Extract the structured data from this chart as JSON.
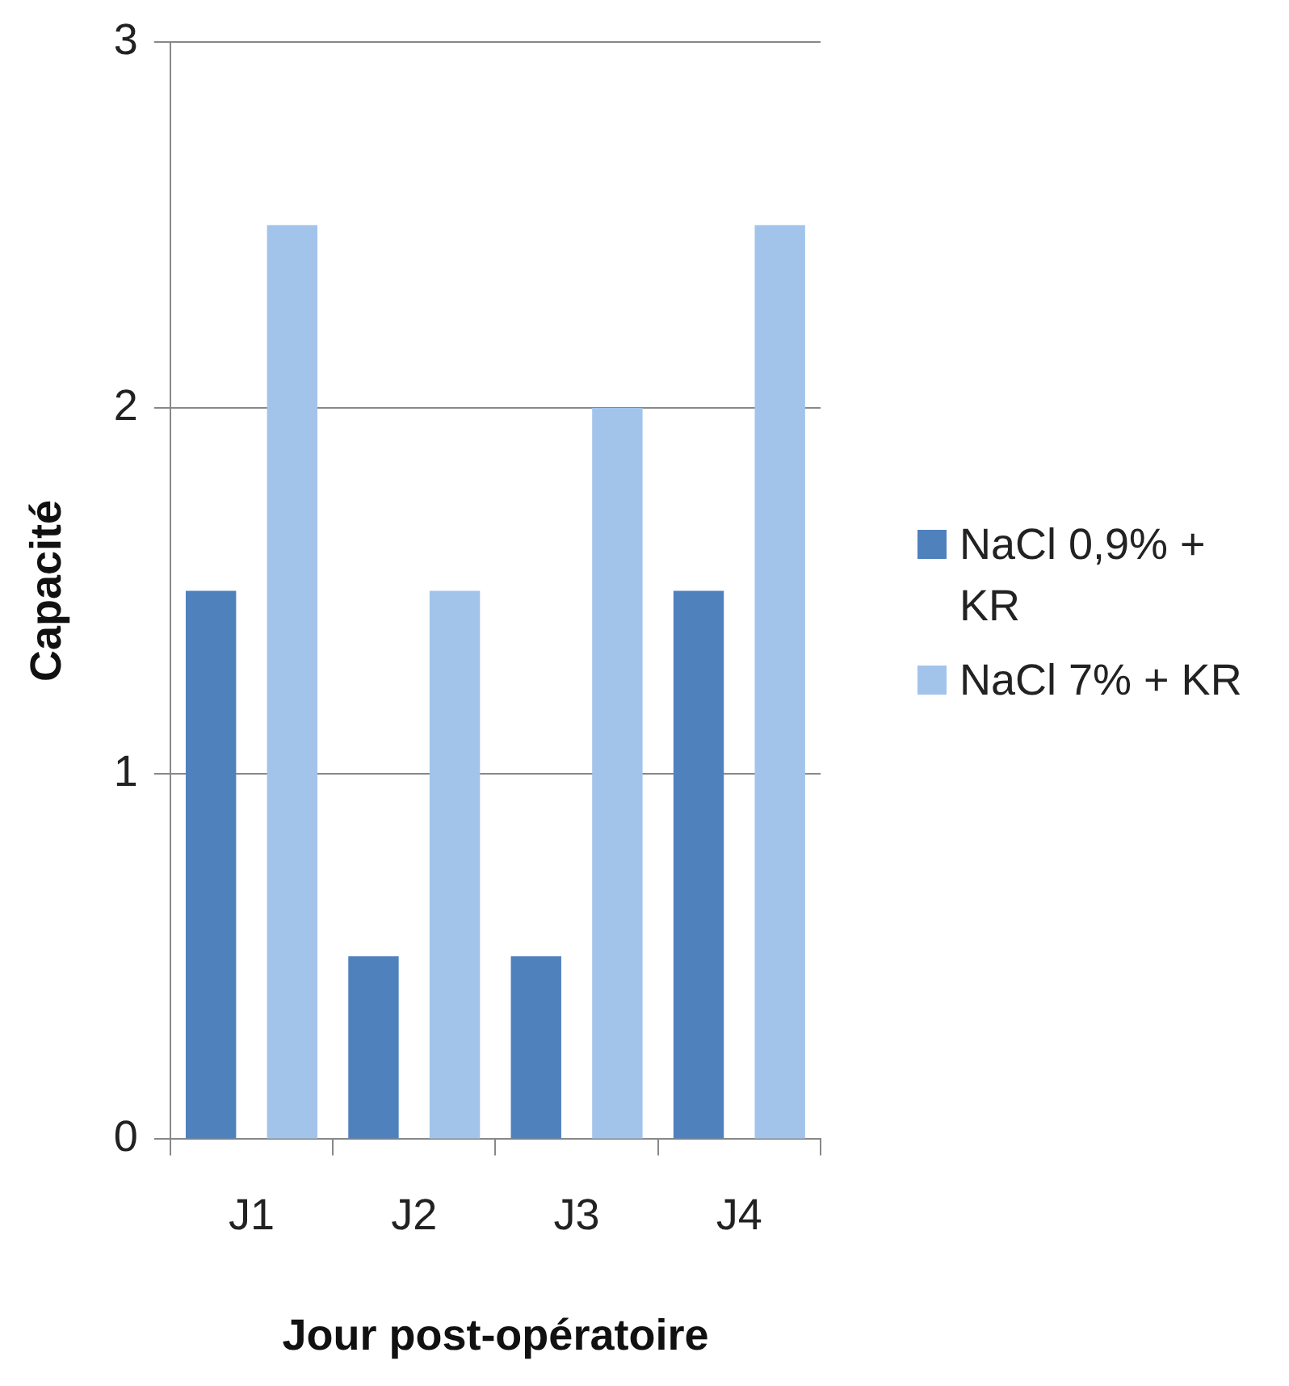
{
  "chart_data": {
    "type": "bar",
    "xlabel": "Jour post-opératoire",
    "ylabel": "Capacité",
    "categories": [
      "J1",
      "J2",
      "J3",
      "J4"
    ],
    "series": [
      {
        "name": "NaCl 0,9% + KR",
        "color": "#4f81bd",
        "values": [
          1.5,
          0.5,
          0.5,
          1.5
        ]
      },
      {
        "name": "NaCl 7% + KR",
        "color": "#a3c4ea",
        "values": [
          2.5,
          1.5,
          2.0,
          2.5
        ]
      }
    ],
    "ylim": [
      0,
      3
    ],
    "yticks": [
      0,
      1,
      2,
      3
    ],
    "grid": "y",
    "legend": "right"
  }
}
